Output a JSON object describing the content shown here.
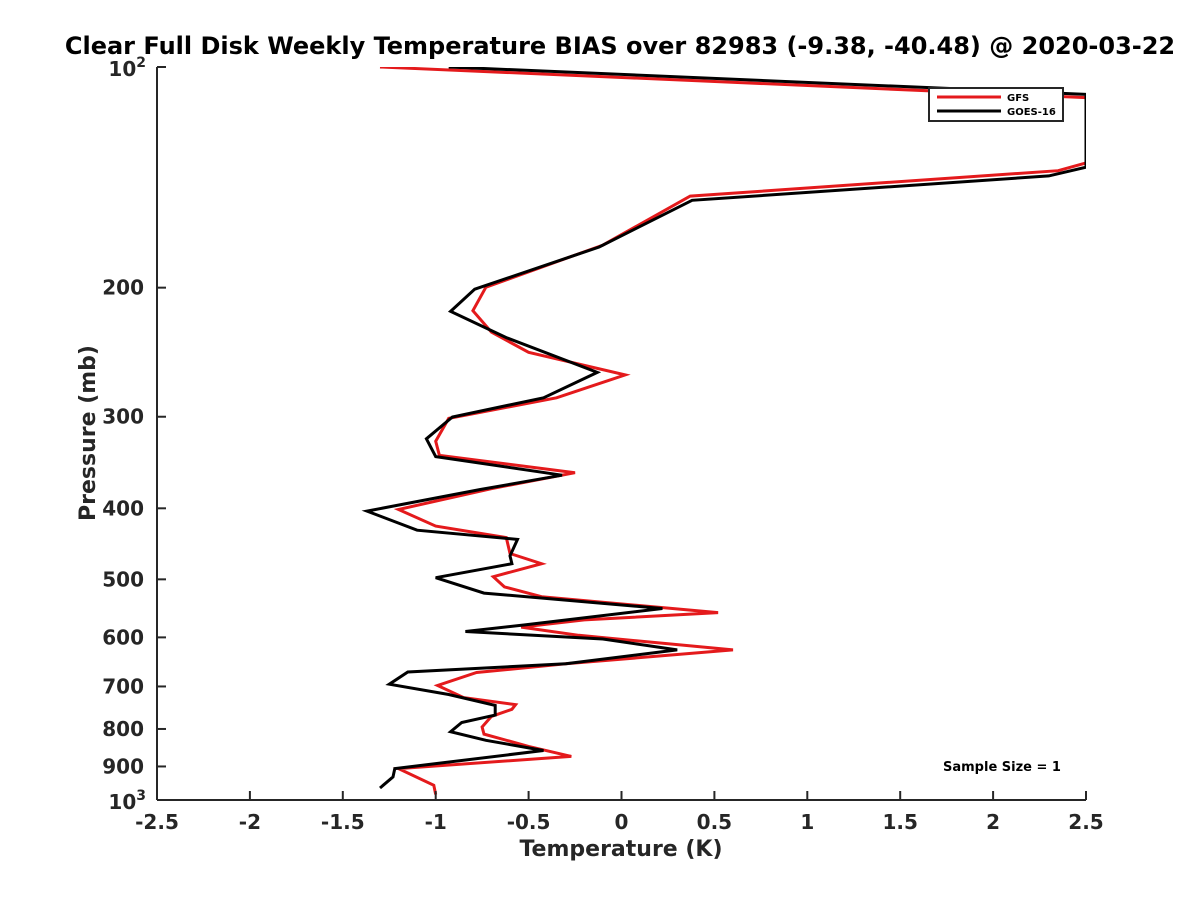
{
  "chart_data": {
    "type": "line",
    "title": "Clear Full Disk Weekly Temperature BIAS over 82983 (-9.38, -40.48) @ 2020-03-22",
    "xlabel": "Temperature (K)",
    "ylabel": "Pressure (mb)",
    "xlim": [
      -2.5,
      2.5
    ],
    "ylim": [
      100,
      1000
    ],
    "y_scale": "log",
    "y_reversed": true,
    "grid": false,
    "legend_position": "top-right",
    "x_ticks": [
      -2.5,
      -2,
      -1.5,
      -1,
      -0.5,
      0,
      0.5,
      1,
      1.5,
      2,
      2.5
    ],
    "x_tick_labels": [
      "-2.5",
      "-2",
      "-1.5",
      "-1",
      "-0.5",
      "0",
      "0.5",
      "1",
      "1.5",
      "2",
      "2.5"
    ],
    "y_ticks": [
      200,
      300,
      400,
      500,
      600,
      700,
      800,
      900
    ],
    "y_tick_labels": [
      "200",
      "300",
      "400",
      "500",
      "600",
      "700",
      "800",
      "900"
    ],
    "y_end_labels": [
      {
        "value": 100,
        "base": "10",
        "exp": "2"
      },
      {
        "value": 1000,
        "base": "10",
        "exp": "3"
      }
    ],
    "annotation": "Sample Size = 1",
    "series": [
      {
        "name": "GFS",
        "color": "#e41a1c",
        "points": [
          [
            -1.3,
            100
          ],
          [
            2.5,
            110.1
          ],
          [
            2.5,
            135.2
          ],
          [
            2.35,
            138.5
          ],
          [
            0.37,
            150.0
          ],
          [
            -0.1,
            175.0
          ],
          [
            -0.73,
            199.7
          ],
          [
            -0.8,
            215.0
          ],
          [
            -0.7,
            230.0
          ],
          [
            -0.5,
            245.0
          ],
          [
            0.02,
            263.1
          ],
          [
            -0.35,
            282.7
          ],
          [
            -0.93,
            301.6
          ],
          [
            -1.0,
            324.0
          ],
          [
            -0.98,
            338.7
          ],
          [
            -0.25,
            357.7
          ],
          [
            -0.7,
            376.0
          ],
          [
            -1.2,
            401.5
          ],
          [
            -1.0,
            423.0
          ],
          [
            -0.62,
            438.5
          ],
          [
            -0.6,
            461.0
          ],
          [
            -0.43,
            476.0
          ],
          [
            -0.69,
            495.8
          ],
          [
            -0.63,
            512.0
          ],
          [
            -0.43,
            528.0
          ],
          [
            0.52,
            555.0
          ],
          [
            -0.2,
            568.0
          ],
          [
            -0.54,
            581.0
          ],
          [
            -0.23,
            596.0
          ],
          [
            0.6,
            624.0
          ],
          [
            -0.3,
            652.0
          ],
          [
            -0.78,
            670.0
          ],
          [
            -0.99,
            698.0
          ],
          [
            -0.85,
            725.0
          ],
          [
            -0.57,
            741.0
          ],
          [
            -0.59,
            752.0
          ],
          [
            -0.7,
            769.0
          ],
          [
            -0.75,
            795.0
          ],
          [
            -0.74,
            813.0
          ],
          [
            -0.5,
            845.0
          ],
          [
            -0.27,
            872.0
          ],
          [
            -1.2,
            906.0
          ],
          [
            -1.01,
            955.0
          ],
          [
            -1.0,
            983.0
          ]
        ]
      },
      {
        "name": "GOES-16",
        "color": "#000000",
        "points": [
          [
            -0.93,
            100
          ],
          [
            2.5,
            109.0
          ],
          [
            2.5,
            137.0
          ],
          [
            2.3,
            140.8
          ],
          [
            0.38,
            152.0
          ],
          [
            -0.12,
            176.0
          ],
          [
            -0.79,
            201.0
          ],
          [
            -0.92,
            215.5
          ],
          [
            -0.62,
            234.0
          ],
          [
            -0.13,
            261.0
          ],
          [
            -0.42,
            282.7
          ],
          [
            -0.91,
            300.3
          ],
          [
            -1.05,
            321.5
          ],
          [
            -1.0,
            340.0
          ],
          [
            -0.32,
            360.5
          ],
          [
            -0.76,
            377.0
          ],
          [
            -1.37,
            403.5
          ],
          [
            -1.1,
            428.5
          ],
          [
            -0.56,
            441.0
          ],
          [
            -0.6,
            464.5
          ],
          [
            -0.59,
            476.0
          ],
          [
            -1.0,
            497.5
          ],
          [
            -0.74,
            522.0
          ],
          [
            0.22,
            548.0
          ],
          [
            -0.52,
            577.0
          ],
          [
            -0.84,
            589.0
          ],
          [
            -0.1,
            603.0
          ],
          [
            0.3,
            624.0
          ],
          [
            -0.3,
            652.0
          ],
          [
            -1.15,
            669.0
          ],
          [
            -1.25,
            695.0
          ],
          [
            -0.93,
            718.0
          ],
          [
            -0.68,
            743.0
          ],
          [
            -0.68,
            766.0
          ],
          [
            -0.86,
            784.0
          ],
          [
            -0.92,
            807.0
          ],
          [
            -0.73,
            829.0
          ],
          [
            -0.42,
            856.0
          ],
          [
            -1.22,
            906.0
          ],
          [
            -1.23,
            930.0
          ],
          [
            -1.3,
            963.0
          ]
        ]
      }
    ]
  }
}
